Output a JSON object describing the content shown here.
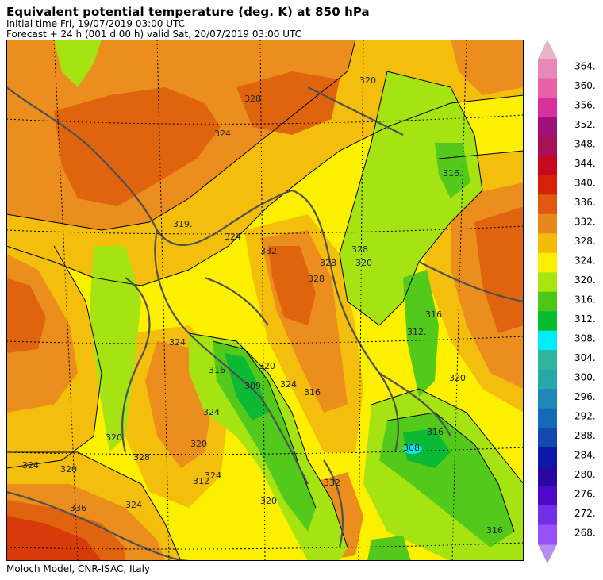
{
  "header": {
    "title": "Equivalent potential temperature (deg. K) at 850 hPa",
    "initial_time": "Initial time  Fri, 19/07/2019  03:00 UTC",
    "forecast": "Forecast  +  24 h  (001 d 00 h)  valid Sat, 20/07/2019 03:00 UTC"
  },
  "footer": {
    "credit": "Moloch Model, CNR-ISAC, Italy"
  },
  "legend": {
    "levels": [
      "364.",
      "360.",
      "356.",
      "352.",
      "348.",
      "344.",
      "340.",
      "336.",
      "332.",
      "328.",
      "324.",
      "320.",
      "316.",
      "312.",
      "308.",
      "304.",
      "300.",
      "296.",
      "292.",
      "288.",
      "284.",
      "280.",
      "276.",
      "272.",
      "268."
    ],
    "colors": {
      "top_arrow": "#e8b4c8",
      "bottom_arrow": "#b48cf0",
      "swatches": [
        "#e888b8",
        "#e860a8",
        "#d8309c",
        "#a0107c",
        "#a81058",
        "#c8081c",
        "#d82008",
        "#e05810",
        "#e8881c",
        "#f4bc08",
        "#fcf000",
        "#a8e410",
        "#4cc818",
        "#08bc30",
        "#00ecf8",
        "#30b49c",
        "#28a8a8",
        "#2088b8",
        "#1868b8",
        "#1448b0",
        "#0c18a8",
        "#2808a0",
        "#5008c8",
        "#7030e8",
        "#9850f8"
      ]
    }
  },
  "map": {
    "contour_labels": [
      "328",
      "320",
      "324",
      "319.",
      "324",
      "332.",
      "328",
      "328",
      "328",
      "316.",
      "320",
      "312.",
      "324",
      "316",
      "320",
      "309.",
      "316",
      "320",
      "324",
      "320",
      "328",
      "324",
      "312",
      "316",
      "320",
      "324",
      "324",
      "320",
      "336",
      "324",
      "316",
      "332",
      "308",
      "320",
      "316"
    ],
    "colors": {
      "c336": "#d83a0a",
      "c332": "#e0640e",
      "c328": "#ec8e1e",
      "c324": "#f4bf0c",
      "c320": "#fcf000",
      "c316": "#a6e313",
      "c312": "#52c91b",
      "c308": "#0cb934",
      "c304": "#00ecf8",
      "coast": "#505050",
      "grid": "#000000"
    }
  }
}
